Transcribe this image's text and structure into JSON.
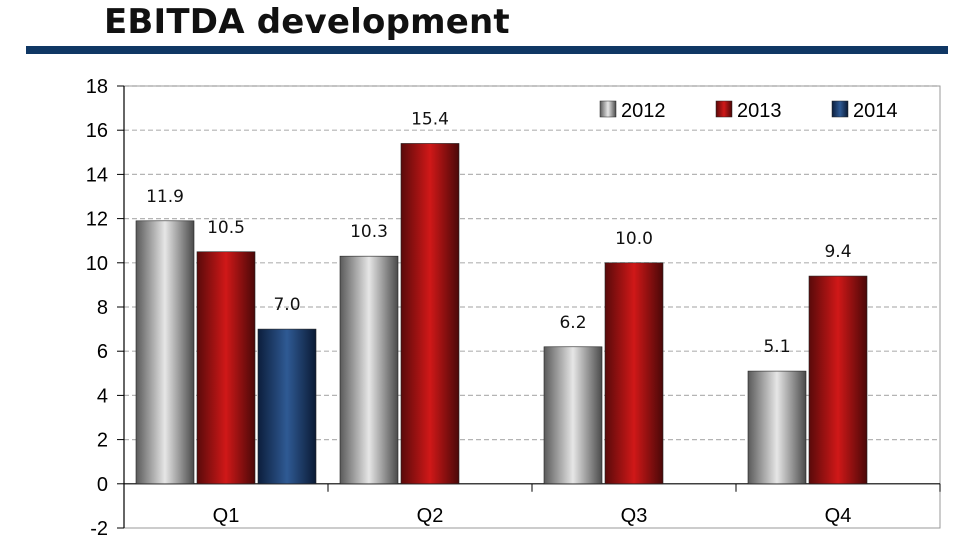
{
  "chart_data": {
    "type": "bar",
    "title": "EBITDA development",
    "categories": [
      "Q1",
      "Q2",
      "Q3",
      "Q4"
    ],
    "series": [
      {
        "name": "2012",
        "values": [
          11.9,
          10.3,
          6.2,
          5.1
        ],
        "color": "#a8a8a8"
      },
      {
        "name": "2013",
        "values": [
          10.5,
          15.4,
          10.0,
          9.4
        ],
        "color": "#b01414"
      },
      {
        "name": "2014",
        "values": [
          7.0,
          null,
          null,
          null
        ],
        "color": "#1a3a6a"
      }
    ],
    "data_labels": [
      [
        "11.9",
        "10.3",
        "6.2",
        "5.1"
      ],
      [
        "10.5",
        "15.4",
        "10.0",
        "9.4"
      ],
      [
        "7.0",
        "",
        "",
        ""
      ]
    ],
    "ylim": [
      -2,
      18
    ],
    "yticks": [
      "-2",
      "0",
      "2",
      "4",
      "6",
      "8",
      "10",
      "12",
      "14",
      "16",
      "18"
    ],
    "xlabel": "",
    "ylabel": "",
    "grid": "horizontal dashed",
    "legend": "top-right"
  }
}
